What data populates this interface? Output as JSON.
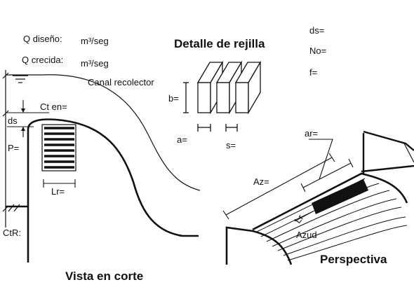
{
  "diagram": {
    "titles": {
      "section": "Vista en corte",
      "grate_detail": "Detalle de rejilla",
      "perspective": "Perspectiva"
    },
    "flow": {
      "q_design_label": "Q diseño:",
      "q_design_unit": "m³/seg",
      "q_flood_label": "Q crecida:",
      "q_flood_unit": "m³/seg"
    },
    "section_labels": {
      "collector": "Canal recolector",
      "crest_elev": "Ct en=",
      "ds": "ds",
      "p": "P=",
      "lr": "Lr=",
      "river_bed": "CtR:"
    },
    "grate_labels": {
      "b": "b=",
      "a": "a=",
      "s": "s="
    },
    "parameters": {
      "ds": "ds=",
      "no": "No=",
      "f": "f="
    },
    "perspective_labels": {
      "ar": "ar=",
      "az": "Az=",
      "lr": "Lr",
      "weir": "Azud"
    }
  }
}
